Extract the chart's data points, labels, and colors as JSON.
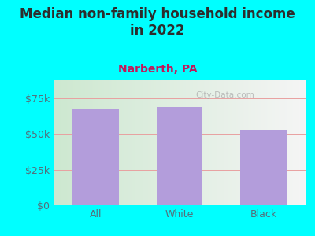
{
  "title": "Median non-family household income\nin 2022",
  "subtitle": "Narberth, PA",
  "categories": [
    "All",
    "White",
    "Black"
  ],
  "values": [
    67000,
    69000,
    53000
  ],
  "bar_color": "#b39ddb",
  "background_outer": "#00ffff",
  "background_plot_grad_left": "#d4edda",
  "background_plot_grad_right": "#f0f0f0",
  "title_color": "#2d2d2d",
  "subtitle_color": "#c2185b",
  "tick_color": "#546e7a",
  "grid_color": "#e8a0a0",
  "ylim": [
    0,
    87500
  ],
  "yticks": [
    0,
    25000,
    50000,
    75000
  ],
  "ytick_labels": [
    "$0",
    "$25k",
    "$50k",
    "$75k"
  ],
  "title_fontsize": 12,
  "subtitle_fontsize": 10,
  "tick_fontsize": 9,
  "watermark": "City-Data.com"
}
